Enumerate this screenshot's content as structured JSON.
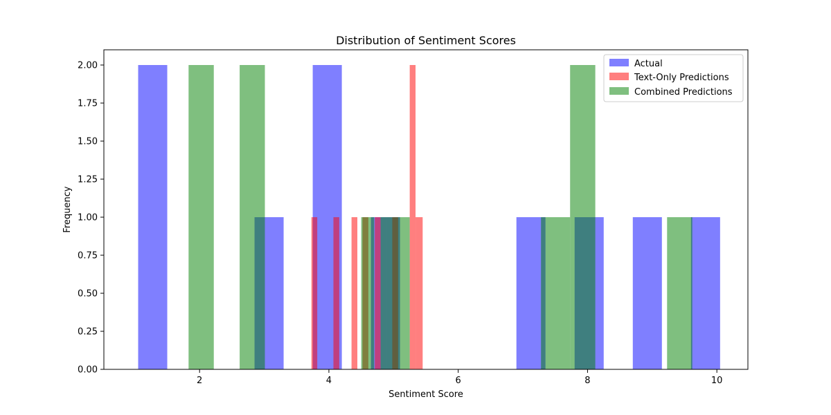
{
  "chart_data": {
    "type": "bar",
    "title": "Distribution of Sentiment Scores",
    "xlabel": "Sentiment Score",
    "ylabel": "Frequency",
    "xlim": [
      0.52,
      10.48
    ],
    "ylim": [
      0,
      2.1
    ],
    "xticks": [
      2,
      4,
      6,
      8,
      10
    ],
    "yticks": [
      0,
      0.25,
      0.5,
      0.75,
      1.0,
      1.25,
      1.5,
      1.75,
      2.0
    ],
    "xtick_labels": [
      "2",
      "4",
      "6",
      "8",
      "10"
    ],
    "ytick_labels": [
      "0.00",
      "0.25",
      "0.50",
      "0.75",
      "1.00",
      "1.25",
      "1.50",
      "1.75",
      "2.00"
    ],
    "grid": false,
    "legend_position": "top-right",
    "series": [
      {
        "name": "Actual",
        "color": "#0000ff",
        "opacity": 0.5,
        "bins": [
          {
            "x0": 1.05,
            "x1": 1.5,
            "y": 2
          },
          {
            "x0": 2.85,
            "x1": 3.3,
            "y": 1
          },
          {
            "x0": 3.75,
            "x1": 4.2,
            "y": 2
          },
          {
            "x0": 4.65,
            "x1": 5.1,
            "y": 1
          },
          {
            "x0": 6.9,
            "x1": 7.35,
            "y": 1
          },
          {
            "x0": 7.8,
            "x1": 8.25,
            "y": 1
          },
          {
            "x0": 8.7,
            "x1": 9.15,
            "y": 1
          },
          {
            "x0": 9.6,
            "x1": 10.05,
            "y": 1
          }
        ]
      },
      {
        "name": "Text-Only Predictions",
        "color": "#ff0000",
        "opacity": 0.5,
        "bins": [
          {
            "x0": 3.73,
            "x1": 3.82,
            "y": 1
          },
          {
            "x0": 4.07,
            "x1": 4.16,
            "y": 1
          },
          {
            "x0": 4.35,
            "x1": 4.44,
            "y": 1
          },
          {
            "x0": 4.52,
            "x1": 4.61,
            "y": 1
          },
          {
            "x0": 4.71,
            "x1": 4.8,
            "y": 1
          },
          {
            "x0": 4.98,
            "x1": 5.07,
            "y": 1
          },
          {
            "x0": 5.25,
            "x1": 5.34,
            "y": 2
          },
          {
            "x0": 5.34,
            "x1": 5.45,
            "y": 1
          }
        ]
      },
      {
        "name": "Combined Predictions",
        "color": "#008000",
        "opacity": 0.5,
        "bins": [
          {
            "x0": 1.83,
            "x1": 2.22,
            "y": 2
          },
          {
            "x0": 2.62,
            "x1": 3.01,
            "y": 2
          },
          {
            "x0": 4.5,
            "x1": 4.6,
            "y": 1
          },
          {
            "x0": 4.6,
            "x1": 4.7,
            "y": 1
          },
          {
            "x0": 4.8,
            "x1": 4.9,
            "y": 1
          },
          {
            "x0": 4.9,
            "x1": 5.0,
            "y": 1
          },
          {
            "x0": 5.0,
            "x1": 5.25,
            "y": 1
          },
          {
            "x0": 7.28,
            "x1": 7.35,
            "y": 1
          },
          {
            "x0": 7.35,
            "x1": 7.73,
            "y": 1
          },
          {
            "x0": 7.73,
            "x1": 8.12,
            "y": 2
          },
          {
            "x0": 9.23,
            "x1": 9.62,
            "y": 1
          }
        ]
      }
    ]
  }
}
